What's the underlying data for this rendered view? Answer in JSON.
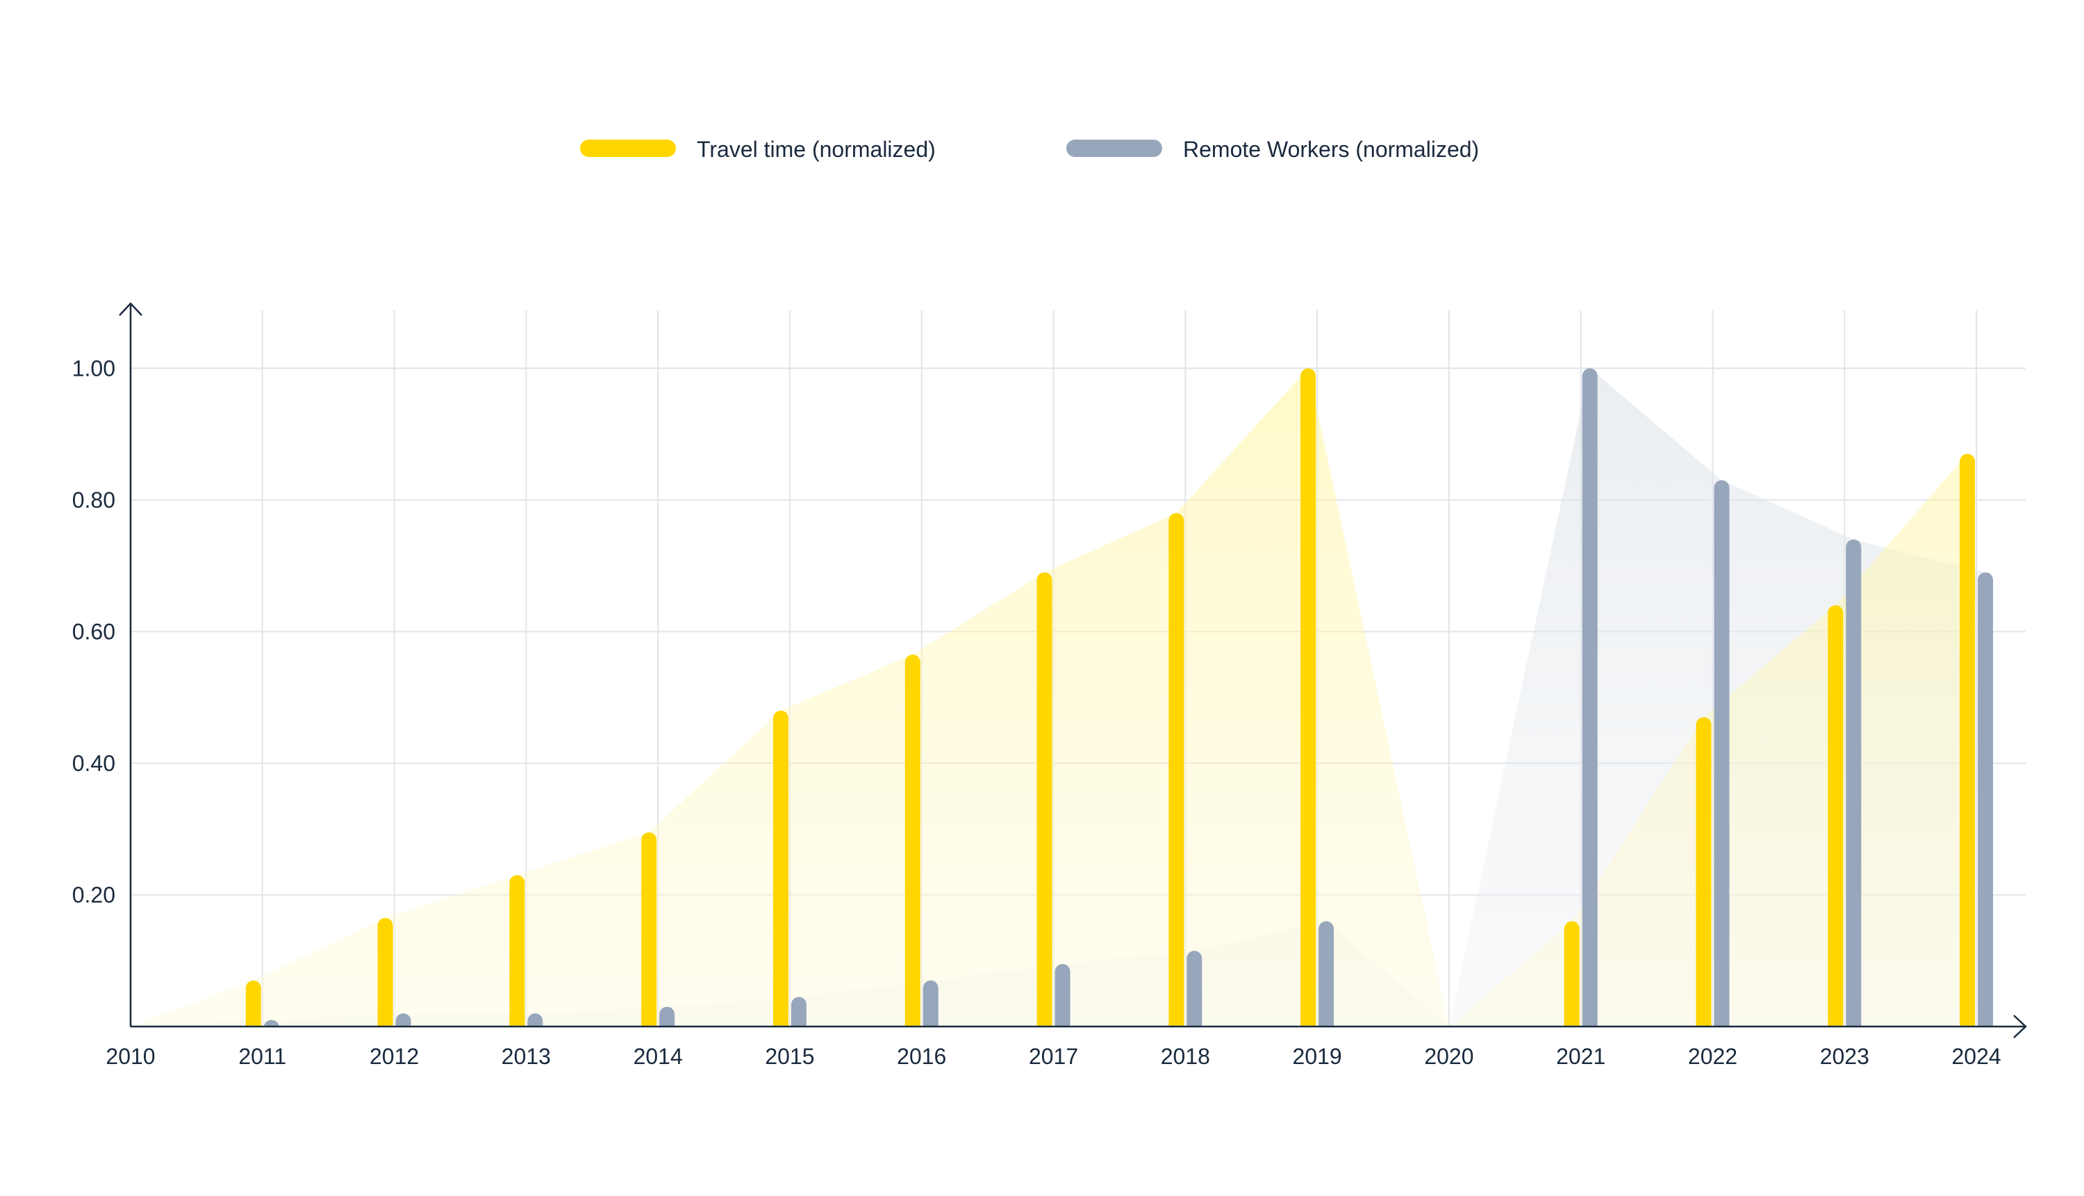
{
  "colors": {
    "travel": "#FFD600",
    "remote": "#97A6BB",
    "axis": "#1a2a3d",
    "grid": "#E2E4E8",
    "text": "#1a2a3d"
  },
  "legend": {
    "placement": "top-center",
    "items": [
      {
        "label": "Travel time (normalized)",
        "color_key": "travel"
      },
      {
        "label": "Remote Workers (normalized)",
        "color_key": "remote"
      }
    ]
  },
  "chart_data": {
    "type": "bar",
    "x": [
      2010,
      2011,
      2012,
      2013,
      2014,
      2015,
      2016,
      2017,
      2018,
      2019,
      2020,
      2021,
      2022,
      2023,
      2024
    ],
    "x_tick_labels": [
      "2010",
      "2011",
      "2012",
      "2013",
      "2014",
      "2015",
      "2016",
      "2017",
      "2018",
      "2019",
      "2020",
      "2021",
      "2022",
      "2023",
      "2024"
    ],
    "y_ticks": [
      0.2,
      0.4,
      0.6,
      0.8,
      1.0
    ],
    "y_tick_labels": [
      "0.20",
      "0.40",
      "0.60",
      "0.80",
      "1.00"
    ],
    "xlim": [
      2010,
      2024.4
    ],
    "ylim": [
      0,
      1.09
    ],
    "grid": true,
    "title": "",
    "xlabel": "",
    "ylabel": "",
    "series": [
      {
        "name": "Travel time (normalized)",
        "color_key": "travel",
        "values": [
          0,
          0.07,
          0.165,
          0.23,
          0.295,
          0.48,
          0.565,
          0.69,
          0.78,
          1.0,
          null,
          0.16,
          0.47,
          0.64,
          0.87
        ]
      },
      {
        "name": "Remote Workers (normalized)",
        "color_key": "remote",
        "values": [
          0,
          0.01,
          0.02,
          0.02,
          0.03,
          0.045,
          0.07,
          0.095,
          0.115,
          0.16,
          null,
          1.0,
          0.83,
          0.74,
          0.69
        ]
      }
    ]
  }
}
